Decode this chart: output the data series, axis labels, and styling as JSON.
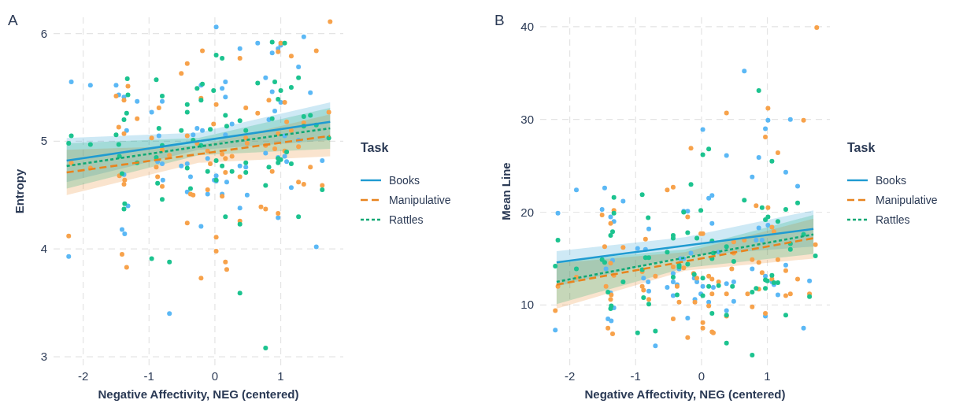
{
  "chart_data": [
    {
      "type": "scatter",
      "title": "A",
      "xlabel": "Negative Affectivity, NEG (centered)",
      "ylabel": "Entropy",
      "legend_title": "Task",
      "legend": "right",
      "grid": true,
      "xlim": [
        -2.45,
        1.95
      ],
      "ylim": [
        2.92,
        6.15
      ],
      "xticks": [
        -2,
        -1,
        0,
        1
      ],
      "yticks": [
        3,
        4,
        5,
        6
      ],
      "series": [
        {
          "marker": "circle",
          "color": "#5bb8f5",
          "x": [
            -2.18,
            -1.89,
            -1.5,
            -1.46,
            -1.38,
            -1.18,
            -1.34,
            -0.96,
            -0.85,
            -0.8,
            -0.27,
            -0.33,
            -1.38,
            -1.32,
            -1.41,
            -1.37,
            -2.22,
            -0.69,
            -0.51,
            -0.42,
            -0.37,
            -0.42,
            -0.87,
            -0.8,
            -0.79,
            0.02,
            1.35,
            0.65,
            0.96,
            1.0,
            0.87,
            0.38,
            1.27,
            0.77,
            0.16,
            -0.21,
            0.11,
            0.87,
            0.16,
            1.45,
            1.0,
            0.91,
            0.82,
            0.26,
            -0.19,
            0.16,
            1.06,
            1.27,
            0.77,
            -0.11,
            0.96,
            1.06,
            1.09,
            1.63,
            0.38,
            0.47,
            0.02,
            -0.01,
            0.02,
            0.18,
            1.16,
            -0.11,
            0.11,
            0.49,
            0.38,
            0.96,
            -0.21,
            1.54
          ],
          "values": [
            5.55,
            5.52,
            5.52,
            5.43,
            5.41,
            5.37,
            5.1,
            5.27,
            5.05,
            5.37,
            5.12,
            5.06,
            4.69,
            4.4,
            4.18,
            4.14,
            3.93,
            3.4,
            4.77,
            4.79,
            4.67,
            4.53,
            4.81,
            4.79,
            4.64,
            6.06,
            5.97,
            5.91,
            5.86,
            5.89,
            5.82,
            5.86,
            5.69,
            5.59,
            5.55,
            5.52,
            5.49,
            5.46,
            5.41,
            5.45,
            5.36,
            5.28,
            5.2,
            5.16,
            5.1,
            5.06,
            5.05,
            5.01,
            4.89,
            4.84,
            4.85,
            4.86,
            4.81,
            4.82,
            4.77,
            4.76,
            4.68,
            4.64,
            4.63,
            4.62,
            4.57,
            4.51,
            4.51,
            4.5,
            4.38,
            4.29,
            4.21,
            4.02
          ]
        },
        {
          "marker": "circle",
          "color": "#f7a24b",
          "x": [
            -0.42,
            -0.51,
            -1.32,
            -1.5,
            -1.38,
            -0.85,
            -1.18,
            -1.46,
            -1.38,
            -0.96,
            -0.42,
            -2.18,
            -1.89,
            -1.45,
            -1.37,
            -1.38,
            -0.89,
            -0.87,
            -0.8,
            -0.69,
            -0.37,
            -0.33,
            -0.42,
            -2.22,
            -1.41,
            -1.34,
            -0.8,
            -0.27,
            1.75,
            1.0,
            0.96,
            1.54,
            -0.19,
            0.38,
            1.16,
            -0.21,
            0.82,
            1.06,
            0.02,
            0.47,
            0.65,
            1.73,
            1.09,
            -0.02,
            1.35,
            1.16,
            0.47,
            0.96,
            0.49,
            0.77,
            1.27,
            0.91,
            1.06,
            -0.11,
            0.11,
            0.26,
            0.16,
            -0.07,
            0.38,
            0.16,
            1.45,
            0.87,
            1.27,
            1.35,
            1.63,
            -0.11,
            0.11,
            0.7,
            0.77,
            0.96,
            0.38,
            0.02,
            0.02,
            0.16,
            0.18,
            -0.21
          ],
          "values": [
            5.72,
            5.63,
            5.51,
            5.42,
            5.38,
            5.31,
            5.21,
            5.13,
            5.07,
            5.03,
            5.05,
            4.8,
            4.75,
            4.68,
            4.64,
            4.6,
            4.76,
            4.67,
            4.58,
            4.87,
            4.51,
            4.5,
            4.24,
            4.12,
            3.95,
            3.83,
            4.92,
            4.98,
            6.11,
            5.91,
            5.83,
            5.84,
            5.84,
            5.77,
            5.79,
            5.4,
            5.38,
            5.36,
            5.34,
            5.31,
            5.26,
            5.27,
            5.18,
            5.16,
            5.17,
            5.1,
            5.03,
            5.07,
            4.98,
            4.96,
            4.95,
            4.93,
            4.91,
            4.91,
            4.88,
            4.86,
            4.84,
            4.79,
            4.67,
            4.71,
            4.76,
            4.72,
            4.62,
            4.6,
            4.59,
            4.55,
            4.49,
            4.39,
            4.37,
            4.33,
            4.26,
            4.11,
            3.98,
            3.88,
            3.81,
            3.73
          ]
        },
        {
          "marker": "circle",
          "color": "#1cc38f",
          "x": [
            -1.33,
            -0.89,
            -0.8,
            -1.32,
            -0.27,
            -0.42,
            -0.42,
            -1.34,
            -1.38,
            -0.85,
            -1.5,
            -0.51,
            -2.18,
            -2.22,
            -1.89,
            -1.46,
            -0.8,
            -0.33,
            -1.45,
            -0.89,
            -1.18,
            -1.41,
            -0.42,
            -0.87,
            -0.37,
            -0.8,
            -1.37,
            -1.38,
            -0.96,
            -0.69,
            0.87,
            1.06,
            0.02,
            0.11,
            0.65,
            0.91,
            -0.19,
            -0.02,
            1.0,
            1.16,
            1.27,
            -0.21,
            0.96,
            0.16,
            0.38,
            1.45,
            1.35,
            0.87,
            -0.07,
            0.18,
            0.47,
            1.54,
            1.35,
            1.73,
            -0.21,
            0.02,
            0.96,
            1.09,
            1.0,
            0.96,
            1.16,
            0.82,
            0.11,
            0.47,
            0.26,
            0.47,
            -0.11,
            0.02,
            0.77,
            1.63,
            0.16,
            0.38,
            1.27,
            0.38,
            0.77
          ],
          "values": [
            5.58,
            5.57,
            5.42,
            5.43,
            5.49,
            5.34,
            5.27,
            5.26,
            5.2,
            5.12,
            5.06,
            5.1,
            5.05,
            4.98,
            4.97,
            4.97,
            4.96,
            5.01,
            4.86,
            4.85,
            4.8,
            4.7,
            4.75,
            4.61,
            4.56,
            4.46,
            4.42,
            4.37,
            3.91,
            3.88,
            5.92,
            5.91,
            5.8,
            5.77,
            5.54,
            5.55,
            5.53,
            5.47,
            5.47,
            5.5,
            5.59,
            5.38,
            5.39,
            5.24,
            5.19,
            5.24,
            5.23,
            5.21,
            5.11,
            5.14,
            5.1,
            5.15,
            5.14,
            5.03,
            4.96,
            4.82,
            4.84,
            4.9,
            4.83,
            4.8,
            4.79,
            4.76,
            4.77,
            4.8,
            4.72,
            4.71,
            4.72,
            4.64,
            4.59,
            4.55,
            4.3,
            4.23,
            4.3,
            3.59,
            3.08
          ]
        },
        {
          "type": "line",
          "name": "Books",
          "color": "#1f9bd1",
          "line_style": "solid",
          "x": [
            -2.25,
            -0.25,
            1.75
          ],
          "values": [
            4.82,
            5.0,
            5.18
          ],
          "lower": [
            4.62,
            4.92,
            5.01
          ],
          "upper": [
            5.03,
            5.08,
            5.36
          ]
        },
        {
          "type": "line",
          "name": "Manipulative",
          "color": "#e8841f",
          "line_style": "dashed",
          "x": [
            -2.25,
            -0.25,
            1.75
          ],
          "values": [
            4.71,
            4.88,
            5.05
          ],
          "lower": [
            4.5,
            4.8,
            4.86
          ],
          "upper": [
            4.92,
            4.96,
            5.25
          ]
        },
        {
          "type": "line",
          "name": "Rattles",
          "color": "#0fa874",
          "line_style": "dotted",
          "x": [
            -2.25,
            -0.25,
            1.75
          ],
          "values": [
            4.77,
            4.95,
            5.12
          ],
          "lower": [
            4.56,
            4.87,
            4.93
          ],
          "upper": [
            4.98,
            5.03,
            5.31
          ]
        }
      ]
    },
    {
      "type": "scatter",
      "title": "B",
      "xlabel": "Negative Affectivity, NEG (centered)",
      "ylabel": "Mean Line",
      "legend_title": "Task",
      "legend": "right",
      "grid": true,
      "xlim": [
        -2.45,
        1.95
      ],
      "ylim": [
        3.5,
        41
      ],
      "xticks": [
        -2,
        -1,
        0,
        1
      ],
      "yticks": [
        10,
        20,
        30,
        40
      ],
      "series": [
        {
          "marker": "circle",
          "color": "#5bb8f5",
          "x": [
            -1.9,
            -1.47,
            -2.18,
            -1.51,
            -1.38,
            -1.33,
            -1.19,
            -0.8,
            -0.97,
            -0.85,
            -1.45,
            -1.35,
            -0.88,
            -0.81,
            -0.8,
            -1.38,
            -1.33,
            -1.42,
            -1.37,
            -2.22,
            -0.7,
            0.65,
            1.01,
            1.35,
            0.97,
            0.02,
            0.38,
            0.87,
            0.77,
            1.28,
            1.46,
            0.16,
            0.11,
            -0.21,
            -0.27,
            1.01,
            0.16,
            0.87,
            0.83,
            0.92,
            -0.52,
            -0.43,
            -0.43,
            -0.37,
            -0.43,
            -0.32,
            -0.27,
            -0.34,
            -0.16,
            -0.11,
            -0.07,
            0.02,
            -0.01,
            0.11,
            0.18,
            0.26,
            0.38,
            0.49,
            0.49,
            0.38,
            0.77,
            0.97,
            0.97,
            1.1,
            1.07,
            1.16,
            1.28,
            1.64,
            1.55,
            -0.21,
            -0.1
          ],
          "values": [
            22.4,
            22.6,
            19.9,
            20.3,
            19.5,
            19.0,
            21.2,
            18.2,
            16.1,
            16.0,
            13.9,
            14.8,
            12.9,
            12.5,
            11.5,
            11.3,
            9.7,
            8.5,
            8.3,
            7.3,
            5.6,
            35.2,
            29.9,
            30.0,
            29.0,
            28.9,
            26.1,
            25.9,
            23.8,
            24.3,
            22.8,
            21.8,
            21.5,
            20.1,
            20.1,
            18.6,
            18.8,
            18.3,
            17.0,
            17.0,
            11.9,
            13.4,
            12.5,
            12.2,
            11.0,
            15.0,
            15.0,
            13.9,
            15.6,
            12.9,
            12.5,
            12.0,
            11.2,
            10.3,
            11.9,
            15.7,
            12.3,
            12.5,
            10.4,
            9.4,
            13.9,
            13.1,
            8.8,
            12.2,
            12.5,
            11.1,
            14.3,
            12.6,
            7.5,
            8.6,
            10.6
          ]
        },
        {
          "marker": "circle",
          "color": "#f7a24b",
          "x": [
            -1.33,
            -1.51,
            -1.38,
            -0.85,
            -1.47,
            -1.19,
            -1.38,
            -0.9,
            -1.33,
            -0.7,
            -1.9,
            -2.18,
            -1.45,
            -0.9,
            -0.88,
            -1.37,
            -1.38,
            -0.8,
            -2.22,
            -1.42,
            -1.35,
            1.75,
            1.01,
            0.38,
            1.55,
            0.97,
            -0.16,
            1.16,
            -0.52,
            -0.43,
            -0.21,
            1.01,
            0.83,
            1.07,
            1.1,
            -0.01,
            0.02,
            0.49,
            0.65,
            1.73,
            0.49,
            0.77,
            0.87,
            1.16,
            -0.43,
            -0.27,
            0.46,
            -0.12,
            -0.07,
            0.11,
            0.16,
            0.26,
            0.92,
            1.28,
            1.07,
            1.46,
            -0.37,
            -0.34,
            -0.1,
            0.16,
            0.38,
            0.7,
            0.87,
            1.35,
            1.28,
            1.64,
            0.11,
            0.77,
            0.38,
            0.97,
            -0.43,
            0.02,
            0.02,
            -0.21,
            0.16,
            0.18
          ],
          "values": [
            20.2,
            19.7,
            18.8,
            17.1,
            16.3,
            16.2,
            14.5,
            13.6,
            13.2,
            13.1,
            13.0,
            12.0,
            12.0,
            12.0,
            11.6,
            11.1,
            10.6,
            10.6,
            9.4,
            7.5,
            6.9,
            39.9,
            31.2,
            30.7,
            29.9,
            28.1,
            26.9,
            26.4,
            22.4,
            22.7,
            19.5,
            20.5,
            20.7,
            18.4,
            17.9,
            17.7,
            17.7,
            16.8,
            17.0,
            16.5,
            15.6,
            14.9,
            14.6,
            14.9,
            14.1,
            14.0,
            13.9,
            13.4,
            12.9,
            13.1,
            12.8,
            12.5,
            13.5,
            13.7,
            12.8,
            12.8,
            12.0,
            10.3,
            10.3,
            11.2,
            11.2,
            11.2,
            11.7,
            11.2,
            11.0,
            11.2,
            9.9,
            9.8,
            8.8,
            9.1,
            8.5,
            8.1,
            7.5,
            6.5,
            7.1,
            7.0
          ]
        },
        {
          "marker": "circle",
          "color": "#1cc38f",
          "x": [
            -1.33,
            -0.9,
            -1.33,
            -0.81,
            -1.35,
            -1.38,
            -2.18,
            -0.8,
            -0.85,
            -1.51,
            -1.47,
            -2.22,
            -1.9,
            -0.9,
            -1.19,
            -1.42,
            -0.88,
            -0.8,
            -1.37,
            -1.38,
            -0.97,
            -0.7,
            0.87,
            0.11,
            0.02,
            1.07,
            -0.16,
            0.65,
            1.46,
            -0.27,
            -0.01,
            0.92,
            1.28,
            1.01,
            0.97,
            1.16,
            -0.21,
            -0.07,
            -0.43,
            -0.43,
            0.16,
            0.38,
            1.55,
            -0.52,
            0.18,
            1.35,
            1.35,
            1.73,
            0.16,
            0.49,
            -0.34,
            -0.34,
            -0.21,
            -0.11,
            -0.43,
            0.02,
            0.11,
            0.26,
            0.47,
            0.83,
            0.97,
            0.97,
            1.0,
            1.07,
            1.1,
            1.16,
            -0.37,
            0.02,
            0.77,
            1.64,
            0.16,
            0.38,
            1.28,
            0.38,
            0.77
          ],
          "values": [
            21.6,
            21.9,
            19.9,
            19.4,
            17.9,
            17.5,
            17.0,
            15.1,
            15.1,
            14.9,
            14.6,
            14.2,
            13.9,
            13.8,
            12.5,
            11.4,
            10.8,
            10.1,
            9.9,
            9.6,
            7.0,
            7.2,
            33.1,
            26.8,
            26.2,
            25.5,
            23.0,
            21.3,
            21.0,
            20.0,
            20.2,
            20.5,
            20.3,
            19.5,
            19.2,
            19.0,
            17.8,
            17.2,
            17.5,
            17.2,
            16.9,
            16.3,
            17.6,
            15.7,
            15.6,
            16.6,
            16.0,
            15.3,
            15.0,
            14.7,
            14.3,
            14.1,
            14.4,
            13.3,
            13.0,
            12.9,
            12.0,
            12.1,
            12.0,
            11.8,
            11.8,
            12.7,
            12.6,
            13.2,
            12.4,
            12.4,
            11.1,
            11.0,
            11.4,
            10.9,
            9.1,
            8.9,
            8.9,
            5.9,
            4.6
          ]
        },
        {
          "type": "line",
          "name": "Books",
          "color": "#1f9bd1",
          "line_style": "solid",
          "x": [
            -2.2,
            -0.25,
            1.7
          ],
          "values": [
            14.6,
            16.4,
            18.2
          ],
          "lower": [
            12.0,
            15.3,
            16.3
          ],
          "upper": [
            15.8,
            17.3,
            20.2
          ]
        },
        {
          "type": "line",
          "name": "Manipulative",
          "color": "#e8841f",
          "line_style": "dashed",
          "x": [
            -2.2,
            -0.25,
            1.7
          ],
          "values": [
            12.2,
            14.7,
            17.2
          ],
          "lower": [
            9.6,
            13.7,
            15.0
          ],
          "upper": [
            14.5,
            15.7,
            19.3
          ]
        },
        {
          "type": "line",
          "name": "Rattles",
          "color": "#0fa874",
          "line_style": "dotted",
          "x": [
            -2.2,
            -0.25,
            1.7
          ],
          "values": [
            12.5,
            15.1,
            17.6
          ],
          "lower": [
            10.1,
            14.0,
            15.5
          ],
          "upper": [
            14.7,
            16.0,
            19.7
          ]
        }
      ]
    }
  ]
}
